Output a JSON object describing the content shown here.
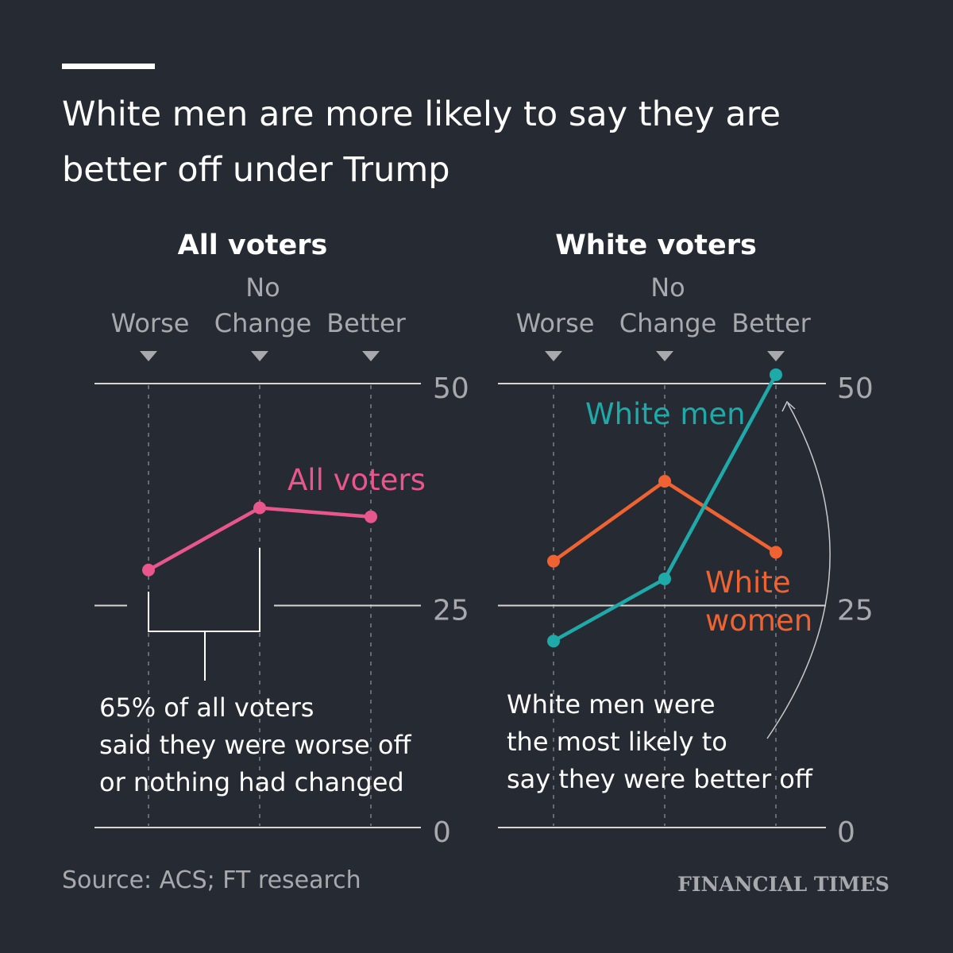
{
  "title_lines": [
    "White men are more likely to say they are",
    "better off under Trump"
  ],
  "source": "Source: ACS; FT research",
  "logo": "FINANCIAL TIMES",
  "colors": {
    "all": "#e9568c",
    "men": "#1eaaa8",
    "women": "#ef6333",
    "bg": "#262a33"
  },
  "chart_data": [
    {
      "type": "line",
      "title": "All voters",
      "categories": [
        "Worse",
        "No Change",
        "Better"
      ],
      "ylim": [
        0,
        50
      ],
      "yticks": [
        {
          "v": 50,
          "label": "50"
        },
        {
          "v": 25,
          "label": "25"
        },
        {
          "v": 0,
          "label": "0"
        }
      ],
      "series": [
        {
          "name": "All voters",
          "color": "#e9568c",
          "values": [
            29,
            36,
            35
          ]
        }
      ],
      "annotation": [
        "65% of all voters",
        "said they were worse off",
        "or nothing had changed"
      ]
    },
    {
      "type": "line",
      "title": "White voters",
      "categories": [
        "Worse",
        "No Change",
        "Better"
      ],
      "ylim": [
        0,
        50
      ],
      "yticks": [
        {
          "v": 50,
          "label": "50"
        },
        {
          "v": 25,
          "label": "25"
        },
        {
          "v": 0,
          "label": "0"
        }
      ],
      "series": [
        {
          "name": "White women",
          "label_lines": [
            "White",
            "women"
          ],
          "color": "#ef6333",
          "values": [
            30,
            39,
            31
          ]
        },
        {
          "name": "White men",
          "label_lines": [
            "White men"
          ],
          "color": "#1eaaa8",
          "values": [
            21,
            28,
            51
          ]
        }
      ],
      "annotation": [
        "White men were",
        "the most likely to",
        "say they were better off"
      ]
    }
  ],
  "category_lines": [
    [
      "",
      "Worse"
    ],
    [
      "No",
      "Change"
    ],
    [
      "",
      "Better"
    ]
  ]
}
